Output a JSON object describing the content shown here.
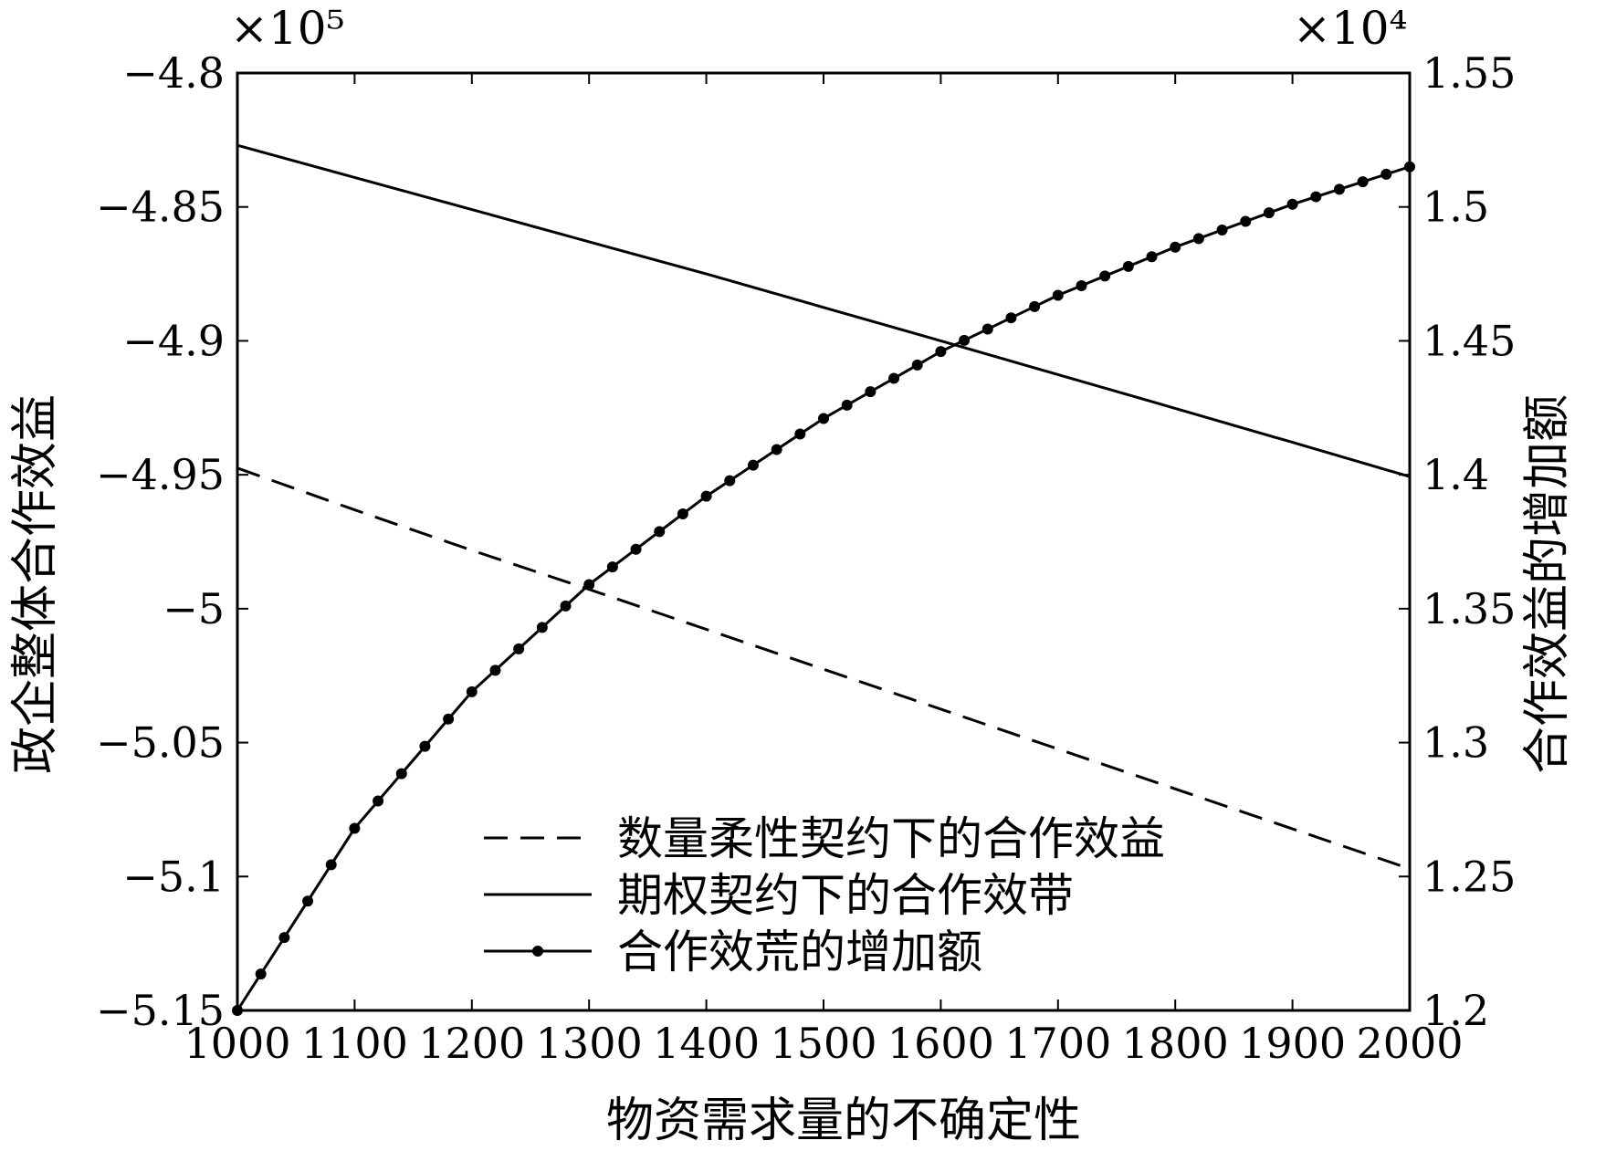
{
  "chart_data": {
    "type": "line",
    "title": "",
    "xlabel": "物资需求量的不确定性",
    "ylabel_left": "政企整体合作效益",
    "ylabel_right": "合作效益的增加额",
    "left_multiplier": "×10⁵",
    "right_multiplier": "×10⁴",
    "xlim": [
      1000,
      2000
    ],
    "ylim_left": [
      -5.15,
      -4.8
    ],
    "ylim_right": [
      1.2,
      1.55
    ],
    "x_ticks": [
      1000,
      1100,
      1200,
      1300,
      1400,
      1500,
      1600,
      1700,
      1800,
      1900,
      2000
    ],
    "x_tick_labels": [
      "1000",
      "1100",
      "1200",
      "1300",
      "1400",
      "1500",
      "1600",
      "1700",
      "1800",
      "1900",
      "2000"
    ],
    "y_left_ticks": [
      -4.8,
      -4.85,
      -4.9,
      -4.95,
      -5.0,
      -5.05,
      -5.1,
      -5.15
    ],
    "y_left_tick_labels": [
      "−4.8",
      "−4.85",
      "−4.9",
      "−4.95",
      "−5",
      "−5.05",
      "−5.1",
      "−5.15"
    ],
    "y_right_ticks": [
      1.55,
      1.5,
      1.45,
      1.4,
      1.35,
      1.3,
      1.25,
      1.2
    ],
    "y_right_tick_labels": [
      "1.55",
      "1.5",
      "1.45",
      "1.4",
      "1.35",
      "1.3",
      "1.25",
      "1.2"
    ],
    "grid": false,
    "legend_position": "bottom-right",
    "series": [
      {
        "name": "数量柔性契约下的合作效益",
        "axis": "left",
        "style": "dashed",
        "x": [
          1000,
          1100,
          1200,
          1300,
          1400,
          1500,
          1600,
          1700,
          1800,
          1900,
          2000
        ],
        "y": [
          -4.9475,
          -4.9631,
          -4.9782,
          -4.9928,
          -5.0077,
          -5.0226,
          -5.0375,
          -5.0524,
          -5.0673,
          -5.0822,
          -5.0971
        ]
      },
      {
        "name": "期权契约下的合作效带",
        "axis": "left",
        "style": "solid",
        "x": [
          1000,
          1100,
          1200,
          1300,
          1400,
          1500,
          1600,
          1700,
          1800,
          1900,
          2000
        ],
        "y": [
          -4.827,
          -4.839,
          -4.851,
          -4.863,
          -4.875,
          -4.8875,
          -4.9,
          -4.9126,
          -4.9252,
          -4.9379,
          -4.9507
        ]
      },
      {
        "name": "合作效荒的增加额",
        "axis": "right",
        "style": "solid-marker",
        "x": [
          1000,
          1100,
          1200,
          1300,
          1400,
          1500,
          1600,
          1700,
          1800,
          1900,
          2000
        ],
        "y": [
          1.2,
          1.268,
          1.319,
          1.359,
          1.392,
          1.421,
          1.446,
          1.467,
          1.485,
          1.501,
          1.515
        ]
      }
    ]
  }
}
